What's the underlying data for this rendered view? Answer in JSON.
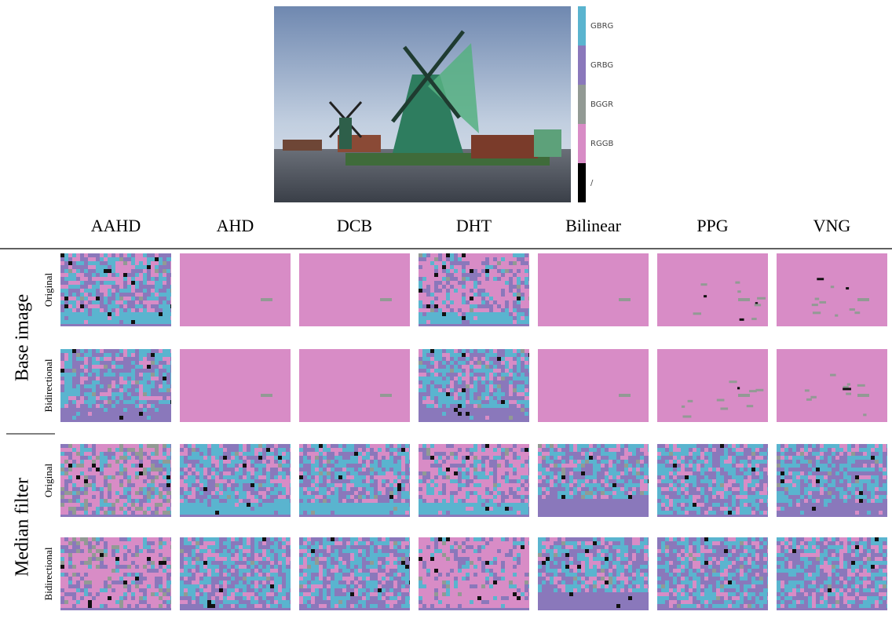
{
  "figure": {
    "colorbar_labels": [
      "GBRG",
      "GRBG",
      "BGGR",
      "RGGB",
      "/"
    ],
    "columns": [
      "AAHD",
      "AHD",
      "DCB",
      "DHT",
      "Bilinear",
      "PPG",
      "VNG"
    ],
    "groups": [
      {
        "label": "Base image",
        "rows": [
          "Original",
          "Bidirectional"
        ]
      },
      {
        "label": "Median filter",
        "rows": [
          "Original",
          "Bidirectional"
        ]
      }
    ]
  }
}
